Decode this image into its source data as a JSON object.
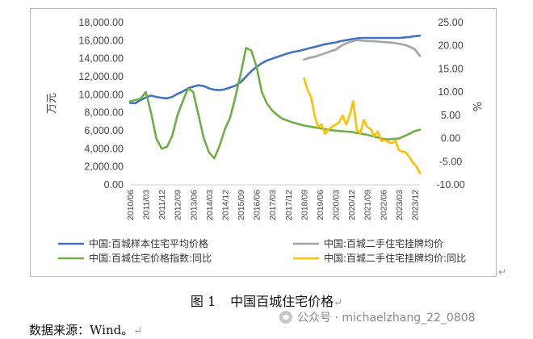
{
  "caption": {
    "number": "图 1",
    "title": "中国百城住宅价格",
    "return_mark": "↵"
  },
  "source": {
    "text": "数据来源：Wind。",
    "return_mark": "↵"
  },
  "watermark": {
    "text": "公众号 · michaelzhang_22_0808",
    "icon": "wechat-icon"
  },
  "box_return_mark": "↵",
  "chart_data": {
    "type": "line",
    "ylabel_left": "万元",
    "ylabel_right": "%",
    "ylim_left": [
      0,
      18000
    ],
    "ylim_right": [
      -10,
      25
    ],
    "yticks_left": [
      "0.00",
      "2,000.00",
      "4,000.00",
      "6,000.00",
      "8,000.00",
      "10,000.00",
      "12,000.00",
      "14,000.00",
      "16,000.00",
      "18,000.00"
    ],
    "yticks_right": [
      "-10.00",
      "-5.00",
      "0.00",
      "5.00",
      "10.00",
      "15.00",
      "20.00",
      "25.00"
    ],
    "xticks": [
      "2010/06",
      "2011/03",
      "2011/12",
      "2012/09",
      "2013/06",
      "2014/03",
      "2014/12",
      "2015/09",
      "2016/06",
      "2017/03",
      "2017/12",
      "2018/09",
      "2019/06",
      "2020/03",
      "2020/12",
      "2021/09",
      "2022/06",
      "2023/03",
      "2023/12"
    ],
    "grid": false,
    "legend_position": "bottom",
    "series": [
      {
        "name": "中国:百城样本住宅平均价格",
        "axis": "left",
        "color": "#4472C4",
        "points": [
          [
            "2010/06",
            9100
          ],
          [
            "2010/09",
            9050
          ],
          [
            "2010/12",
            9400
          ],
          [
            "2011/03",
            9700
          ],
          [
            "2011/06",
            9900
          ],
          [
            "2011/09",
            9750
          ],
          [
            "2011/12",
            9650
          ],
          [
            "2012/03",
            9600
          ],
          [
            "2012/06",
            9750
          ],
          [
            "2012/09",
            10100
          ],
          [
            "2012/12",
            10350
          ],
          [
            "2013/03",
            10700
          ],
          [
            "2013/06",
            10900
          ],
          [
            "2013/09",
            11050
          ],
          [
            "2013/12",
            10950
          ],
          [
            "2014/03",
            10700
          ],
          [
            "2014/06",
            10550
          ],
          [
            "2014/09",
            10500
          ],
          [
            "2014/12",
            10600
          ],
          [
            "2015/03",
            10800
          ],
          [
            "2015/06",
            11000
          ],
          [
            "2015/09",
            11400
          ],
          [
            "2015/12",
            12000
          ],
          [
            "2016/03",
            12600
          ],
          [
            "2016/06",
            13100
          ],
          [
            "2016/09",
            13500
          ],
          [
            "2016/12",
            13800
          ],
          [
            "2017/03",
            14000
          ],
          [
            "2017/06",
            14200
          ],
          [
            "2017/09",
            14400
          ],
          [
            "2017/12",
            14600
          ],
          [
            "2018/03",
            14750
          ],
          [
            "2018/06",
            14850
          ],
          [
            "2018/09",
            15000
          ],
          [
            "2018/12",
            15150
          ],
          [
            "2019/03",
            15300
          ],
          [
            "2019/06",
            15450
          ],
          [
            "2019/09",
            15600
          ],
          [
            "2019/12",
            15700
          ],
          [
            "2020/03",
            15800
          ],
          [
            "2020/06",
            15950
          ],
          [
            "2020/09",
            16050
          ],
          [
            "2020/12",
            16150
          ],
          [
            "2021/03",
            16250
          ],
          [
            "2021/06",
            16300
          ],
          [
            "2021/09",
            16300
          ],
          [
            "2021/12",
            16300
          ],
          [
            "2022/03",
            16300
          ],
          [
            "2022/06",
            16300
          ],
          [
            "2022/09",
            16300
          ],
          [
            "2022/12",
            16300
          ],
          [
            "2023/03",
            16300
          ],
          [
            "2023/06",
            16350
          ],
          [
            "2023/09",
            16400
          ],
          [
            "2023/12",
            16500
          ],
          [
            "2024/03",
            16550
          ]
        ]
      },
      {
        "name": "中国:百城二手住宅挂牌均价",
        "axis": "left",
        "color": "#A5A5A5",
        "points": [
          [
            "2018/09",
            13900
          ],
          [
            "2018/12",
            14100
          ],
          [
            "2019/03",
            14200
          ],
          [
            "2019/06",
            14400
          ],
          [
            "2019/09",
            14600
          ],
          [
            "2019/12",
            14800
          ],
          [
            "2020/03",
            15000
          ],
          [
            "2020/06",
            15400
          ],
          [
            "2020/09",
            15700
          ],
          [
            "2020/12",
            15900
          ],
          [
            "2021/03",
            16050
          ],
          [
            "2021/06",
            16000
          ],
          [
            "2021/09",
            15950
          ],
          [
            "2021/12",
            15950
          ],
          [
            "2022/03",
            15900
          ],
          [
            "2022/06",
            15850
          ],
          [
            "2022/09",
            15800
          ],
          [
            "2022/12",
            15750
          ],
          [
            "2023/03",
            15650
          ],
          [
            "2023/06",
            15550
          ],
          [
            "2023/09",
            15350
          ],
          [
            "2023/12",
            15050
          ],
          [
            "2024/03",
            14300
          ]
        ]
      },
      {
        "name": "中国:百城住宅价格指数:同比",
        "axis": "right",
        "color": "#70AD47",
        "points": [
          [
            "2010/06",
            8.0
          ],
          [
            "2010/12",
            8.6
          ],
          [
            "2011/03",
            10.0
          ],
          [
            "2011/06",
            5.5
          ],
          [
            "2011/09",
            0.0
          ],
          [
            "2011/12",
            -2.2
          ],
          [
            "2012/03",
            -1.8
          ],
          [
            "2012/06",
            0.5
          ],
          [
            "2012/09",
            5.0
          ],
          [
            "2012/12",
            8.0
          ],
          [
            "2013/03",
            10.8
          ],
          [
            "2013/06",
            10.0
          ],
          [
            "2013/09",
            5.0
          ],
          [
            "2013/12",
            0.0
          ],
          [
            "2014/03",
            -3.0
          ],
          [
            "2014/06",
            -4.3
          ],
          [
            "2014/09",
            -1.5
          ],
          [
            "2014/12",
            2.0
          ],
          [
            "2015/03",
            4.5
          ],
          [
            "2015/06",
            9.0
          ],
          [
            "2015/09",
            14.0
          ],
          [
            "2015/12",
            19.5
          ],
          [
            "2016/03",
            19.0
          ],
          [
            "2016/06",
            15.5
          ],
          [
            "2016/09",
            10.0
          ],
          [
            "2016/12",
            7.5
          ],
          [
            "2017/03",
            6.0
          ],
          [
            "2017/06",
            5.0
          ],
          [
            "2017/09",
            4.2
          ],
          [
            "2017/12",
            3.8
          ],
          [
            "2018/03",
            3.4
          ],
          [
            "2018/06",
            3.1
          ],
          [
            "2018/09",
            2.8
          ],
          [
            "2018/12",
            2.6
          ],
          [
            "2019/03",
            2.4
          ],
          [
            "2019/06",
            2.2
          ],
          [
            "2019/09",
            2.0
          ],
          [
            "2019/12",
            1.8
          ],
          [
            "2020/03",
            1.7
          ],
          [
            "2020/06",
            1.6
          ],
          [
            "2020/09",
            1.5
          ],
          [
            "2020/12",
            1.4
          ],
          [
            "2021/03",
            1.2
          ],
          [
            "2021/06",
            1.0
          ],
          [
            "2021/09",
            0.8
          ],
          [
            "2021/12",
            0.5
          ],
          [
            "2022/03",
            0.2
          ],
          [
            "2022/06",
            -0.1
          ],
          [
            "2022/09",
            -0.2
          ],
          [
            "2022/12",
            -0.1
          ],
          [
            "2023/03",
            0.0
          ],
          [
            "2023/06",
            0.5
          ],
          [
            "2023/09",
            1.0
          ],
          [
            "2023/12",
            1.6
          ],
          [
            "2024/03",
            1.9
          ]
        ]
      },
      {
        "name": "中国:百城二手住宅挂牌均价:同比",
        "axis": "right",
        "color": "#FFC000",
        "points": [
          [
            "2018/09",
            13.0
          ],
          [
            "2018/11",
            10.5
          ],
          [
            "2019/01",
            9.0
          ],
          [
            "2019/03",
            5.0
          ],
          [
            "2019/05",
            2.5
          ],
          [
            "2019/07",
            3.0
          ],
          [
            "2019/09",
            1.0
          ],
          [
            "2019/11",
            2.0
          ],
          [
            "2020/01",
            2.5
          ],
          [
            "2020/03",
            3.0
          ],
          [
            "2020/05",
            3.5
          ],
          [
            "2020/07",
            5.0
          ],
          [
            "2020/09",
            3.0
          ],
          [
            "2020/11",
            5.0
          ],
          [
            "2021/01",
            8.0
          ],
          [
            "2021/03",
            2.0
          ],
          [
            "2021/05",
            1.0
          ],
          [
            "2021/07",
            4.0
          ],
          [
            "2021/09",
            2.5
          ],
          [
            "2021/11",
            2.0
          ],
          [
            "2022/01",
            0.5
          ],
          [
            "2022/03",
            1.5
          ],
          [
            "2022/05",
            -0.5
          ],
          [
            "2022/07",
            -0.3
          ],
          [
            "2022/09",
            -0.8
          ],
          [
            "2022/11",
            -1.0
          ],
          [
            "2023/01",
            -0.5
          ],
          [
            "2023/03",
            -2.5
          ],
          [
            "2023/05",
            -2.8
          ],
          [
            "2023/07",
            -3.0
          ],
          [
            "2023/09",
            -4.0
          ],
          [
            "2023/11",
            -5.2
          ],
          [
            "2024/01",
            -6.0
          ],
          [
            "2024/03",
            -7.5
          ]
        ]
      }
    ]
  }
}
